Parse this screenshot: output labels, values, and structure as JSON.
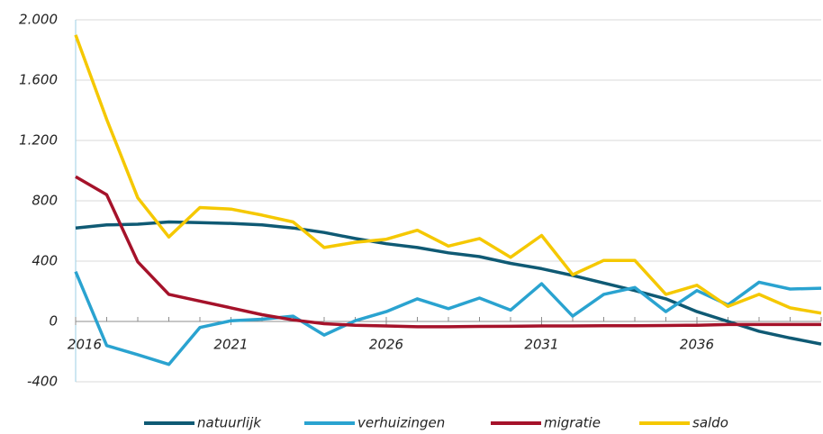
{
  "chart_data": {
    "type": "line",
    "x": [
      2016,
      2017,
      2018,
      2019,
      2020,
      2021,
      2022,
      2023,
      2024,
      2025,
      2026,
      2027,
      2028,
      2029,
      2030,
      2031,
      2032,
      2033,
      2034,
      2035,
      2036,
      2037,
      2038,
      2039,
      2040
    ],
    "xlim": [
      2016,
      2040
    ],
    "xticks": [
      2016,
      2021,
      2026,
      2031,
      2036
    ],
    "ylim": [
      -400,
      2000
    ],
    "yticks": [
      -400,
      0,
      400,
      800,
      {
        "value": 1200,
        "label": "1.200"
      },
      {
        "value": 1600,
        "label": "1.600"
      },
      {
        "value": 2000,
        "label": "2.000"
      }
    ],
    "grid": true,
    "legend": "bottom",
    "series": [
      {
        "name": "natuurlijk",
        "color": "#0f5a74",
        "values": [
          620,
          640,
          645,
          660,
          655,
          650,
          640,
          620,
          590,
          550,
          515,
          490,
          455,
          430,
          385,
          350,
          305,
          255,
          205,
          150,
          65,
          0,
          -65,
          -110,
          -150
        ]
      },
      {
        "name": "verhuizingen",
        "color": "#2aa3d0",
        "values": [
          330,
          -160,
          -220,
          -285,
          -40,
          5,
          15,
          35,
          -90,
          5,
          65,
          150,
          85,
          155,
          75,
          250,
          35,
          180,
          225,
          65,
          205,
          110,
          260,
          215,
          220
        ]
      },
      {
        "name": "migratie",
        "color": "#a5122a",
        "values": [
          960,
          840,
          395,
          180,
          135,
          90,
          45,
          10,
          -15,
          -25,
          -30,
          -35,
          -35,
          -33,
          -32,
          -30,
          -30,
          -28,
          -28,
          -27,
          -25,
          -20,
          -20,
          -20,
          -20
        ]
      },
      {
        "name": "saldo",
        "color": "#f5c800",
        "values": [
          1900,
          1340,
          820,
          560,
          755,
          745,
          705,
          660,
          490,
          525,
          545,
          605,
          500,
          550,
          425,
          570,
          310,
          405,
          405,
          180,
          240,
          100,
          180,
          90,
          55
        ]
      }
    ]
  }
}
